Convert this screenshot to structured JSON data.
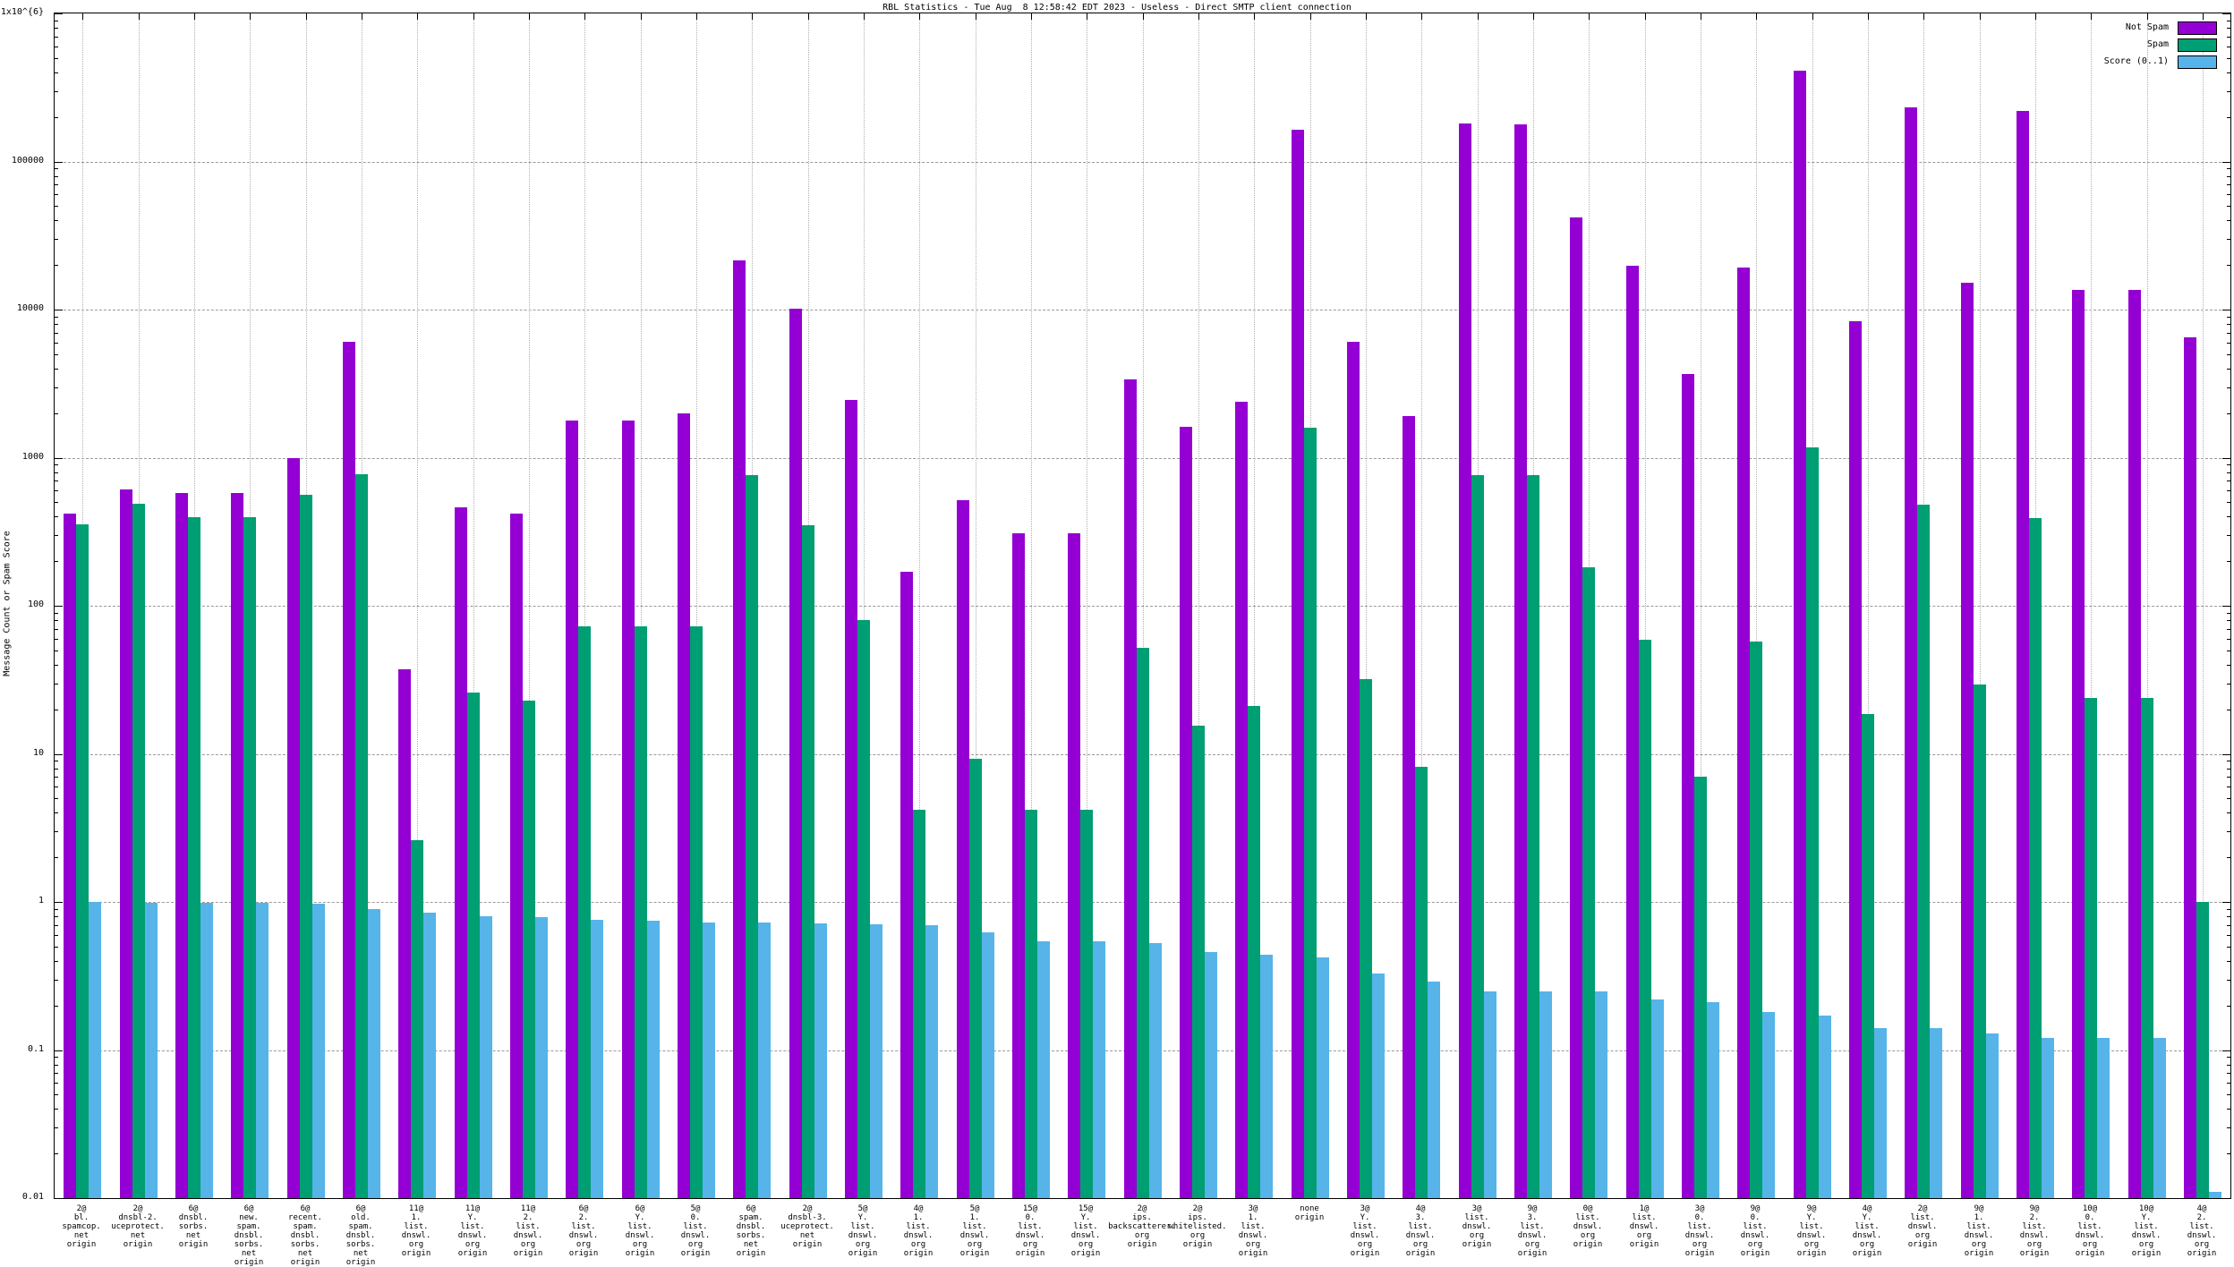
{
  "title": "RBL Statistics - Tue Aug  8 12:58:42 EDT 2023 - Useless - Direct SMTP client connection",
  "y_axis": {
    "label": "Message Count or Spam Score",
    "scale": "log",
    "min": 0.01,
    "max": 1000000,
    "ticks": [
      {
        "value": 1000000,
        "label": "1x10^{6}"
      },
      {
        "value": 100000,
        "label": "100000"
      },
      {
        "value": 10000,
        "label": "10000"
      },
      {
        "value": 1000,
        "label": "1000"
      },
      {
        "value": 100,
        "label": "100"
      },
      {
        "value": 10,
        "label": "10"
      },
      {
        "value": 1,
        "label": "1"
      },
      {
        "value": 0.1,
        "label": "0.1"
      },
      {
        "value": 0.01,
        "label": "0.01"
      }
    ]
  },
  "legend": [
    {
      "label": "Not Spam",
      "color": "#9400d3"
    },
    {
      "label": "Spam",
      "color": "#009e73"
    },
    {
      "label": "Score (0..1)",
      "color": "#56b4e9"
    }
  ],
  "colors": {
    "not_spam": "#9400d3",
    "spam": "#009e73",
    "score": "#56b4e9",
    "grid": "#9a9a9a",
    "border": "#000000"
  },
  "chart_data": {
    "type": "bar",
    "y_scale": "log",
    "ylim": [
      0.01,
      1000000
    ],
    "grid": true,
    "legend_position": "top-right",
    "title": "RBL Statistics - Tue Aug  8 12:58:42 EDT 2023 - Useless - Direct SMTP client connection",
    "ylabel": "Message Count or Spam Score",
    "categories": [
      "2@\nbl.\nspamcop.\nnet\norigin",
      "2@\ndnsbl-2.\nuceprotect.\nnet\norigin",
      "6@\ndnsbl.\nsorbs.\nnet\norigin",
      "6@\nnew.\nspam.\ndnsbl.\nsorbs.\nnet\norigin",
      "6@\nrecent.\nspam.\ndnsbl.\nsorbs.\nnet\norigin",
      "6@\nold.\nspam.\ndnsbl.\nsorbs.\nnet\norigin",
      "11@\n1.\nlist.\ndnswl.\norg\norigin",
      "11@\nY.\nlist.\ndnswl.\norg\norigin",
      "11@\n2.\nlist.\ndnswl.\norg\norigin",
      "6@\n2.\nlist.\ndnswl.\norg\norigin",
      "6@\nY.\nlist.\ndnswl.\norg\norigin",
      "5@\n0.\nlist.\ndnswl.\norg\norigin",
      "6@\nspam.\ndnsbl.\nsorbs.\nnet\norigin",
      "2@\ndnsbl-3.\nuceprotect.\nnet\norigin",
      "5@\nY.\nlist.\ndnswl.\norg\norigin",
      "4@\n1.\nlist.\ndnswl.\norg\norigin",
      "5@\n1.\nlist.\ndnswl.\norg\norigin",
      "15@\n0.\nlist.\ndnswl.\norg\norigin",
      "15@\nY.\nlist.\ndnswl.\norg\norigin",
      "2@\nips.\nbackscatterer.\norg\norigin",
      "2@\nips.\nwhitelisted.\norg\norigin",
      "3@\n1.\nlist.\ndnswl.\norg\norigin",
      "none\norigin",
      "3@\nY.\nlist.\ndnswl.\norg\norigin",
      "4@\n3.\nlist.\ndnswl.\norg\norigin",
      "3@\nlist.\ndnswl.\norg\norigin",
      "9@\n3.\nlist.\ndnswl.\norg\norigin",
      "0@\nlist.\ndnswl.\norg\norigin",
      "1@\nlist.\ndnswl.\norg\norigin",
      "3@\n0.\nlist.\ndnswl.\norg\norigin",
      "9@\n0.\nlist.\ndnswl.\norg\norigin",
      "9@\nY.\nlist.\ndnswl.\norg\norigin",
      "4@\nY.\nlist.\ndnswl.\norg\norigin",
      "2@\nlist.\ndnswl.\norg\norigin",
      "9@\n1.\nlist.\ndnswl.\norg\norigin",
      "9@\n2.\nlist.\ndnswl.\norg\norigin",
      "10@\n0.\nlist.\ndnswl.\norg\norigin",
      "10@\nY.\nlist.\ndnswl.\norg\norigin",
      "4@\n2.\nlist.\ndnswl.\norg\norigin"
    ],
    "series": [
      {
        "name": "Not Spam",
        "color": "#9400d3",
        "values": [
          420,
          610,
          580,
          580,
          995,
          6100,
          37,
          460,
          420,
          1780,
          1780,
          1980,
          21400,
          10200,
          2450,
          169,
          520,
          308,
          308,
          3400,
          1620,
          2400,
          165000,
          6050,
          1900,
          180000,
          178000,
          42000,
          19900,
          3660,
          19200,
          410000,
          8300,
          232000,
          15100,
          218000,
          13600,
          13600,
          6460
        ]
      },
      {
        "name": "Spam",
        "color": "#009e73",
        "values": [
          355,
          490,
          395,
          394,
          565,
          770,
          2.6,
          26,
          23,
          73,
          73,
          73,
          764,
          349,
          80,
          4.2,
          9.3,
          4.2,
          4.2,
          52,
          15.5,
          21,
          1585,
          32,
          8.2,
          765,
          764,
          182,
          59,
          7,
          57,
          1170,
          18.5,
          480,
          29.5,
          390,
          24,
          24,
          1.0
        ]
      },
      {
        "name": "Score (0..1)",
        "color": "#56b4e9",
        "values": [
          1.0,
          0.99,
          0.98,
          0.98,
          0.97,
          0.89,
          0.85,
          0.8,
          0.79,
          0.76,
          0.75,
          0.73,
          0.73,
          0.72,
          0.71,
          0.7,
          0.62,
          0.54,
          0.54,
          0.53,
          0.46,
          0.44,
          0.42,
          0.33,
          0.29,
          0.25,
          0.25,
          0.25,
          0.22,
          0.21,
          0.18,
          0.17,
          0.14,
          0.14,
          0.13,
          0.12,
          0.12,
          0.12,
          0.011
        ]
      }
    ]
  }
}
